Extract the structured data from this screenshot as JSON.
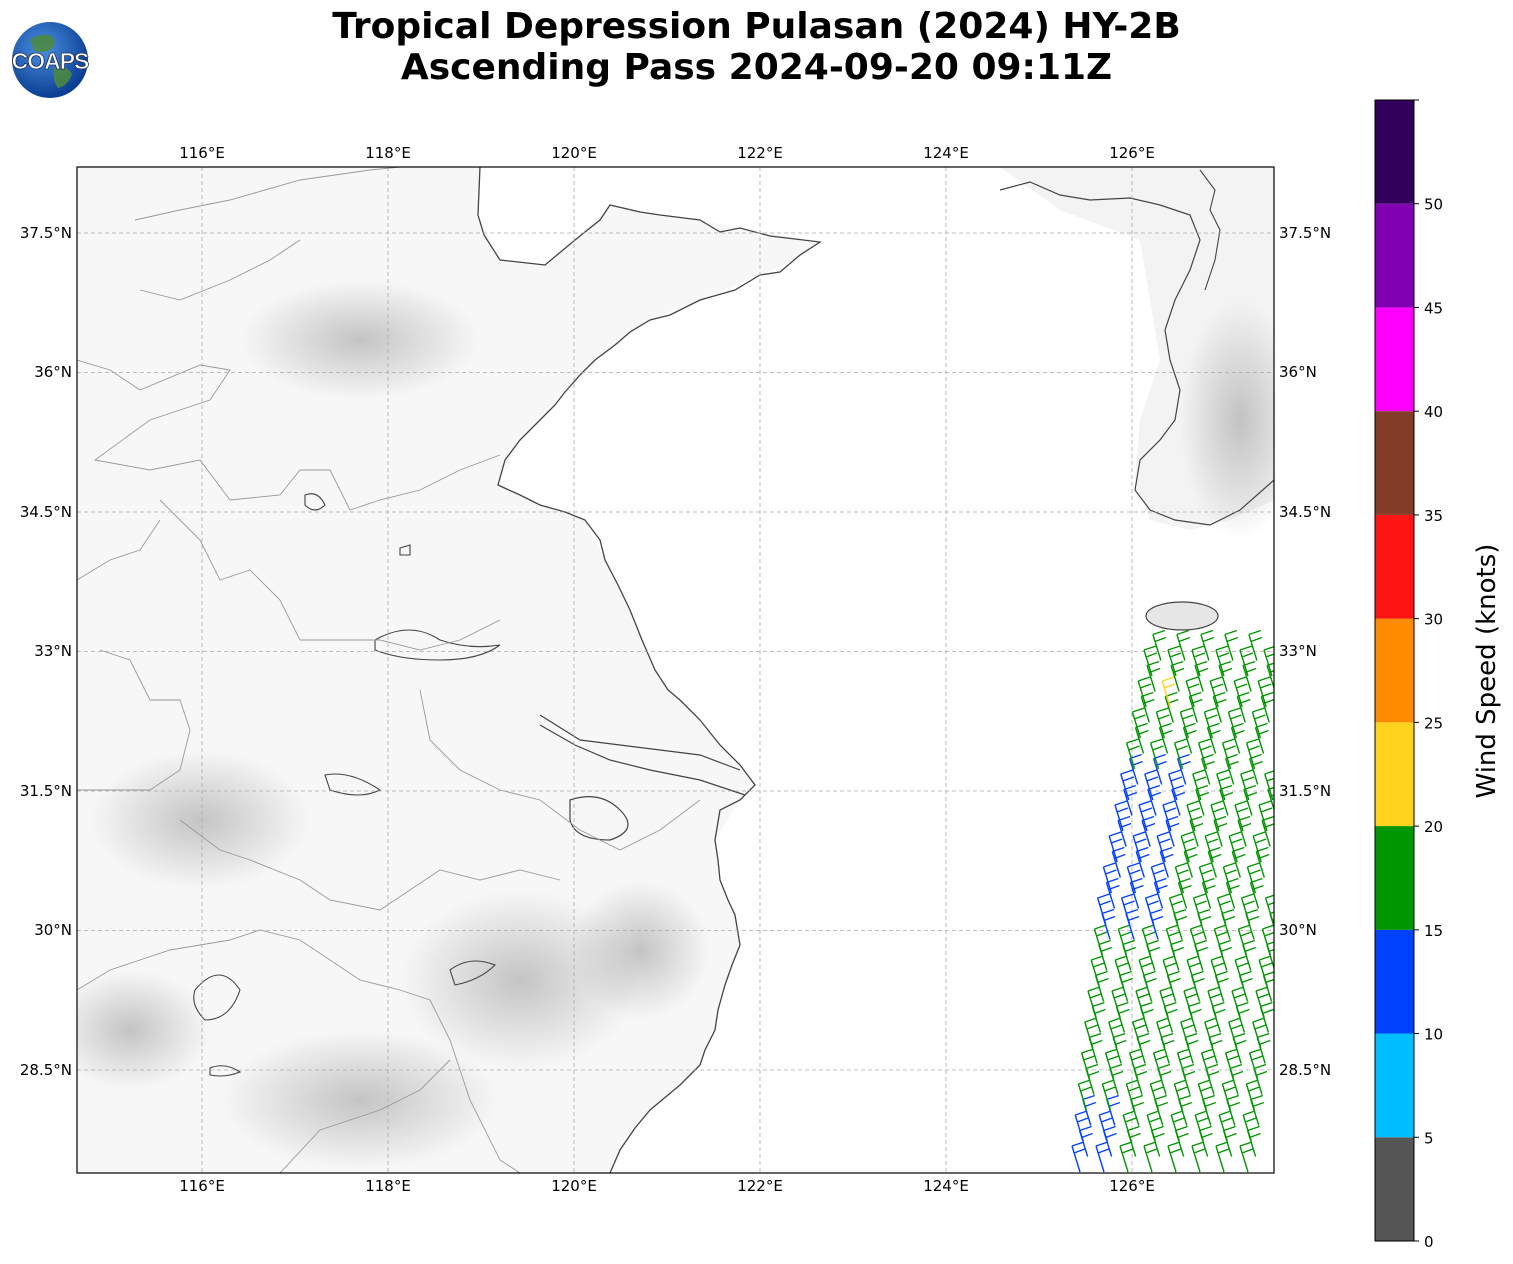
{
  "title": {
    "line1": "Tropical Depression Pulasan (2024) HY-2B",
    "line2": "Ascending Pass 2024-09-20 09:11Z"
  },
  "logo": {
    "text": "COAPS",
    "icon": "globe-icon"
  },
  "map": {
    "lon_range": [
      114.65,
      127.5
    ],
    "lat_range": [
      27.0,
      37.5
    ],
    "lon_ticks": [
      {
        "value": 116,
        "label": "116°E"
      },
      {
        "value": 118,
        "label": "118°E"
      },
      {
        "value": 120,
        "label": "120°E"
      },
      {
        "value": 122,
        "label": "122°E"
      },
      {
        "value": 124,
        "label": "124°E"
      },
      {
        "value": 126,
        "label": "126°E"
      }
    ],
    "lat_ticks": [
      {
        "value": 37.5,
        "label": "37.5°N"
      },
      {
        "value": 36,
        "label": "36°N"
      },
      {
        "value": 34.5,
        "label": "34.5°N"
      },
      {
        "value": 33,
        "label": "33°N"
      },
      {
        "value": 31.5,
        "label": "31.5°N"
      },
      {
        "value": 30,
        "label": "30°N"
      },
      {
        "value": 28.5,
        "label": "28.5°N"
      }
    ],
    "gridlines": true
  },
  "colorbar": {
    "label": "Wind Speed (knots)",
    "ticks": [
      "0",
      "5",
      "10",
      "15",
      "20",
      "25",
      "30",
      "35",
      "40",
      "45",
      "50"
    ],
    "colors": [
      "#555555",
      "#00bfff",
      "#0040ff",
      "#009600",
      "#ffd21e",
      "#ff8c00",
      "#ff1414",
      "#823c28",
      "#ff00ff",
      "#8200b4",
      "#32005a"
    ]
  },
  "wind_field": {
    "pass_direction": "ascending",
    "dominant_speed_range_kt": [
      15,
      20
    ],
    "lower_speed_range_kt": [
      10,
      15
    ],
    "isolated_speed_range_kt": [
      20,
      25
    ]
  }
}
